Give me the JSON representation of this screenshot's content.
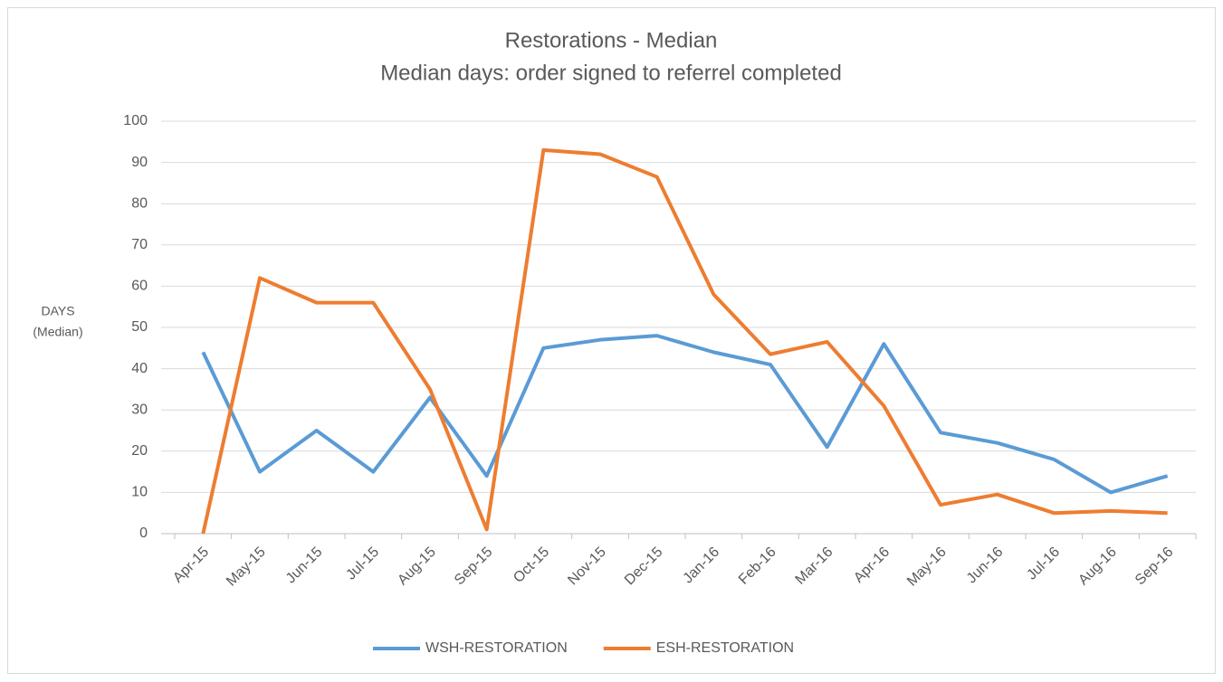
{
  "chart_data": {
    "type": "line",
    "title": "Restorations - Median",
    "subtitle": "Median days: order signed to referrel completed",
    "y_label": [
      "DAYS",
      "(Median)"
    ],
    "categories": [
      "Apr-15",
      "May-15",
      "Jun-15",
      "Jul-15",
      "Aug-15",
      "Sep-15",
      "Oct-15",
      "Nov-15",
      "Dec-15",
      "Jan-16",
      "Feb-16",
      "Mar-16",
      "Apr-16",
      "May-16",
      "Jun-16",
      "Jul-16",
      "Aug-16",
      "Sep-16"
    ],
    "series": [
      {
        "name": "WSH-RESTORATION",
        "color": "#5b9bd5",
        "values": [
          44,
          15,
          25,
          15,
          33,
          14,
          45,
          47,
          48,
          44,
          41,
          21,
          46,
          24.5,
          22,
          18,
          10,
          14
        ]
      },
      {
        "name": "ESH-RESTORATION",
        "color": "#ed7d31",
        "values": [
          0,
          62,
          56,
          56,
          35,
          1,
          93,
          92,
          86.5,
          58,
          43.5,
          46.5,
          31,
          7,
          9.5,
          5,
          5.5,
          5
        ]
      }
    ],
    "ylim": [
      0,
      100
    ],
    "yticks": [
      0,
      10,
      20,
      30,
      40,
      50,
      60,
      70,
      80,
      90,
      100
    ],
    "grid": true,
    "legend": "bottom"
  }
}
